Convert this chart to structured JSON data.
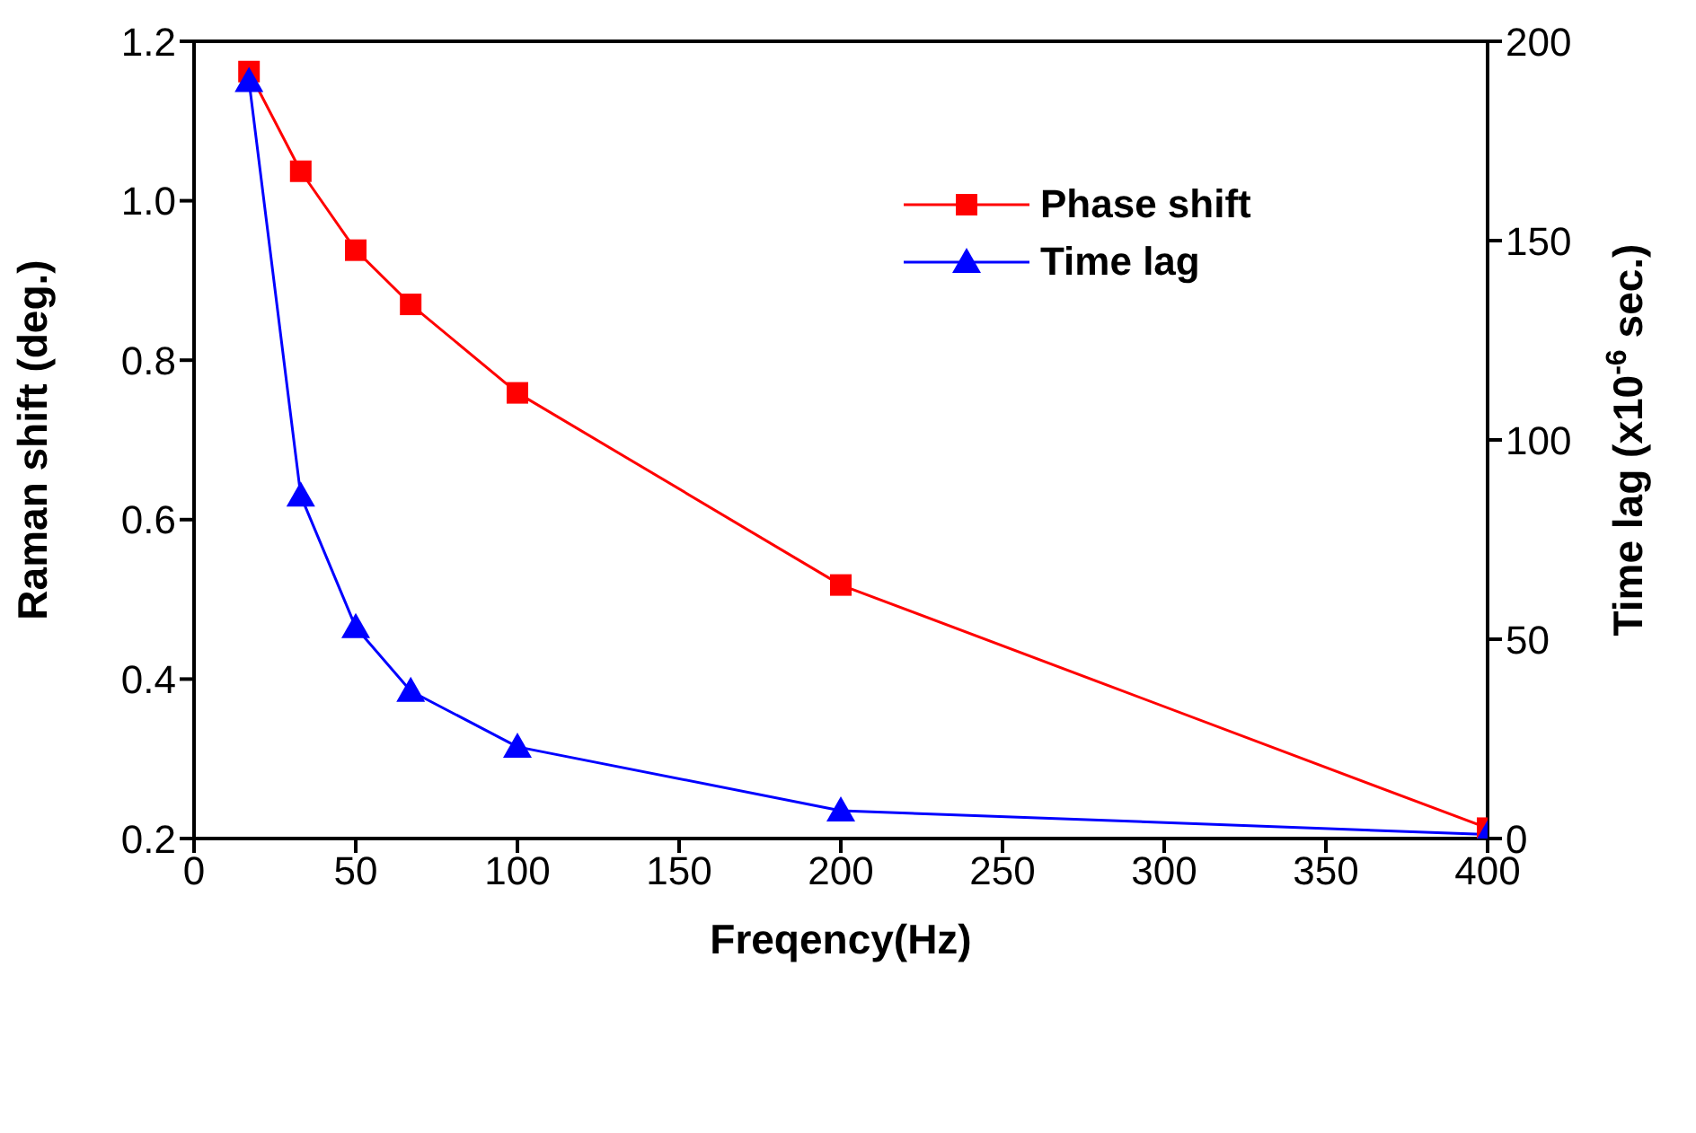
{
  "chart_data": {
    "type": "line",
    "xlabel": "Freqency(Hz)",
    "ylabel": "Raman shift (deg.)",
    "y2label": "Time lag (x10$^{-6}$ sec.)",
    "x": [
      17,
      33,
      50,
      67,
      100,
      200,
      400
    ],
    "series": [
      {
        "name": "Phase shift",
        "color": "#ff0000",
        "marker": "square",
        "values": [
          1.162,
          1.037,
          0.938,
          0.87,
          0.759,
          0.518,
          0.213
        ]
      },
      {
        "name": "Time lag",
        "color": "#0000ff",
        "marker": "triangle",
        "axis": "y2",
        "values": [
          190,
          86,
          53,
          37,
          23,
          7,
          1
        ]
      }
    ],
    "xlim": [
      0,
      400
    ],
    "xticks": [
      0,
      50,
      100,
      150,
      200,
      250,
      300,
      350,
      400
    ],
    "ylim": [
      0.2,
      1.2
    ],
    "yticks": [
      0.2,
      0.4,
      0.6,
      0.8,
      {
        "value": 1,
        "label": "1.0"
      },
      1.2
    ],
    "y2lim": [
      0,
      200
    ],
    "y2ticks": [
      0,
      50,
      100,
      150,
      200
    ],
    "grid": false,
    "legend": "top right",
    "line_style": "solid"
  }
}
